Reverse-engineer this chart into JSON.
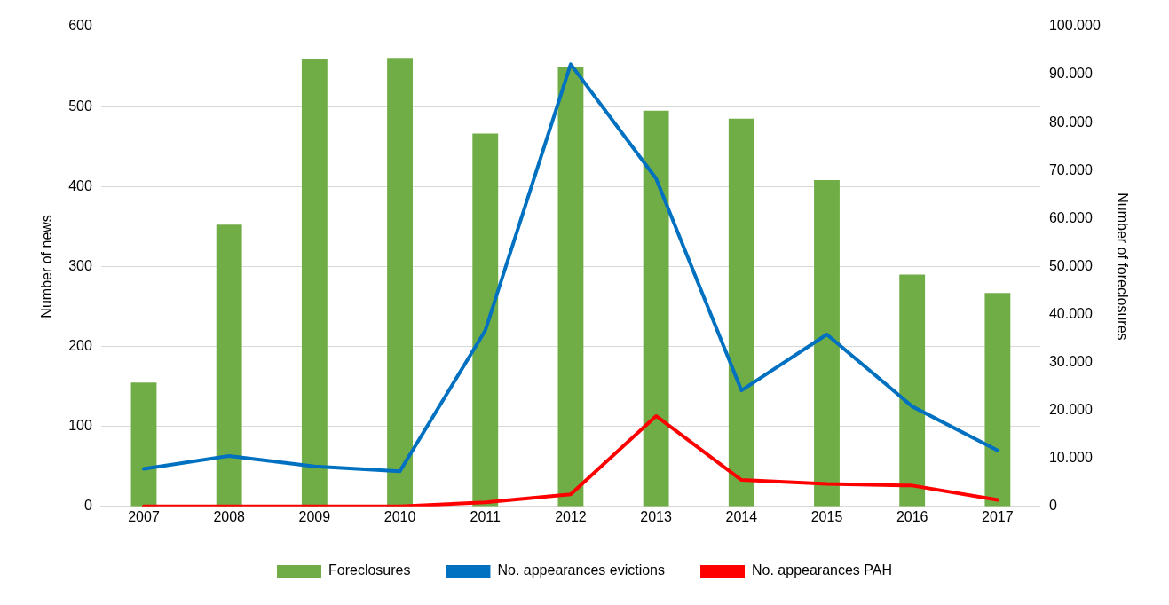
{
  "chart_data": {
    "type": "bar",
    "ylabel": "Number of news",
    "y2label": "Number of foreclosures",
    "categories": [
      "2007",
      "2008",
      "2009",
      "2010",
      "2011",
      "2012",
      "2013",
      "2014",
      "2015",
      "2016",
      "2017"
    ],
    "series": [
      {
        "name": "Foreclosures",
        "axis": "y2",
        "color": "#70ad47",
        "values": [
          25800,
          58700,
          93300,
          93500,
          77700,
          91500,
          82500,
          80800,
          68000,
          48300,
          44500
        ]
      },
      {
        "name": "No. appearances evictions",
        "type": "line",
        "axis": "y",
        "color": "#0070c0",
        "values": [
          47,
          63,
          50,
          44,
          220,
          553,
          410,
          145,
          215,
          125,
          70
        ]
      },
      {
        "name": "No. appearances PAH",
        "type": "line",
        "axis": "y",
        "color": "#ff0000",
        "values": [
          0,
          0,
          0,
          0,
          5,
          15,
          113,
          33,
          28,
          26,
          8
        ]
      }
    ],
    "ylim": [
      0,
      600
    ],
    "yticks": [
      0,
      100,
      200,
      300,
      400,
      500,
      600
    ],
    "y2lim": [
      0,
      100000
    ],
    "y2ticks": [
      {
        "value": 0,
        "label": "0"
      },
      {
        "value": 10000,
        "label": "10.000"
      },
      {
        "value": 20000,
        "label": "20.000"
      },
      {
        "value": 30000,
        "label": "30.000"
      },
      {
        "value": 40000,
        "label": "40.000"
      },
      {
        "value": 50000,
        "label": "50.000"
      },
      {
        "value": 60000,
        "label": "60.000"
      },
      {
        "value": 70000,
        "label": "70.000"
      },
      {
        "value": 80000,
        "label": "80.000"
      },
      {
        "value": 90000,
        "label": "90.000"
      },
      {
        "value": 100000,
        "label": "100.000"
      }
    ],
    "grid": "y",
    "legend": "bottom",
    "marker": "none"
  }
}
